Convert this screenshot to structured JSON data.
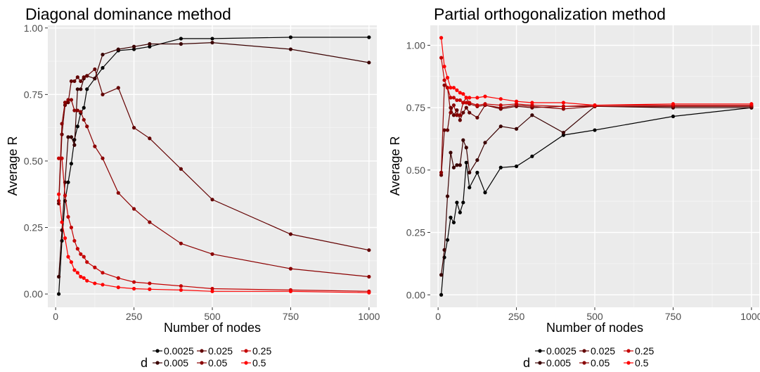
{
  "chart_data": [
    {
      "type": "line",
      "title": "Diagonal dominance method",
      "xlabel": "Number of nodes",
      "ylabel": "Average R",
      "xlim": [
        -25,
        1025
      ],
      "ylim": [
        -0.05,
        1.01
      ],
      "xticks": [
        0,
        250,
        500,
        750,
        1000
      ],
      "xtick_labels": [
        "0",
        "250",
        "500",
        "750",
        "1000"
      ],
      "yticks": [
        0,
        0.25,
        0.5,
        0.75,
        1.0
      ],
      "ytick_labels": [
        "0.00",
        "0.25",
        "0.50",
        "0.75",
        "1.00"
      ],
      "grid": true,
      "legend_title": "d",
      "legend_position": "bottom",
      "series": [
        {
          "name": "0.0025",
          "color": "#000000",
          "x": [
            10,
            20,
            30,
            40,
            50,
            60,
            70,
            80,
            90,
            100,
            125,
            150,
            200,
            250,
            300,
            400,
            500,
            750,
            1000
          ],
          "y": [
            0.0,
            0.2,
            0.35,
            0.42,
            0.49,
            0.58,
            0.63,
            0.68,
            0.7,
            0.77,
            0.81,
            0.85,
            0.915,
            0.92,
            0.93,
            0.96,
            0.96,
            0.965,
            0.965
          ]
        },
        {
          "name": "0.005",
          "color": "#3a0000",
          "x": [
            10,
            20,
            30,
            40,
            50,
            60,
            70,
            80,
            90,
            100,
            125,
            150,
            200,
            250,
            300,
            400,
            500,
            750,
            1000
          ],
          "y": [
            0.065,
            0.24,
            0.42,
            0.59,
            0.59,
            0.56,
            0.77,
            0.77,
            0.81,
            0.82,
            0.81,
            0.9,
            0.92,
            0.93,
            0.94,
            0.94,
            0.945,
            0.92,
            0.87
          ]
        },
        {
          "name": "0.025",
          "color": "#620000",
          "x": [
            10,
            20,
            30,
            40,
            50,
            60,
            70,
            80,
            90,
            100,
            125,
            150,
            200,
            250,
            300,
            400,
            500,
            750,
            1000
          ],
          "y": [
            0.34,
            0.6,
            0.71,
            0.72,
            0.8,
            0.8,
            0.815,
            0.8,
            0.815,
            0.82,
            0.845,
            0.75,
            0.775,
            0.625,
            0.585,
            0.47,
            0.355,
            0.225,
            0.165
          ]
        },
        {
          "name": "0.05",
          "color": "#8a0000",
          "x": [
            10,
            20,
            30,
            40,
            50,
            60,
            70,
            80,
            90,
            100,
            125,
            150,
            200,
            250,
            300,
            400,
            500,
            750,
            1000
          ],
          "y": [
            0.35,
            0.64,
            0.72,
            0.73,
            0.73,
            0.69,
            0.69,
            0.685,
            0.655,
            0.63,
            0.555,
            0.51,
            0.38,
            0.32,
            0.27,
            0.19,
            0.15,
            0.095,
            0.065
          ]
        },
        {
          "name": "0.25",
          "color": "#c40000",
          "x": [
            10,
            20,
            30,
            40,
            50,
            60,
            70,
            80,
            90,
            100,
            125,
            150,
            200,
            250,
            300,
            400,
            500,
            750,
            1000
          ],
          "y": [
            0.51,
            0.51,
            0.37,
            0.29,
            0.25,
            0.2,
            0.17,
            0.15,
            0.14,
            0.12,
            0.1,
            0.08,
            0.06,
            0.045,
            0.04,
            0.03,
            0.02,
            0.015,
            0.01
          ]
        },
        {
          "name": "0.5",
          "color": "#ff0000",
          "x": [
            10,
            20,
            30,
            40,
            50,
            60,
            70,
            80,
            90,
            100,
            125,
            150,
            200,
            250,
            300,
            400,
            500,
            750,
            1000
          ],
          "y": [
            0.375,
            0.27,
            0.21,
            0.14,
            0.12,
            0.09,
            0.08,
            0.065,
            0.06,
            0.05,
            0.04,
            0.035,
            0.025,
            0.02,
            0.018,
            0.015,
            0.01,
            0.01,
            0.005
          ]
        }
      ]
    },
    {
      "type": "line",
      "title": "Partial orthogonalization method",
      "xlabel": "Number of nodes",
      "ylabel": "Average R",
      "xlim": [
        -25,
        1025
      ],
      "ylim": [
        -0.05,
        1.08
      ],
      "xticks": [
        0,
        250,
        500,
        750,
        1000
      ],
      "xtick_labels": [
        "0",
        "250",
        "500",
        "750",
        "1000"
      ],
      "yticks": [
        0,
        0.25,
        0.5,
        0.75,
        1.0
      ],
      "ytick_labels": [
        "0.00",
        "0.25",
        "0.50",
        "0.75",
        "1.00"
      ],
      "grid": true,
      "legend_title": "d",
      "legend_position": "bottom",
      "series": [
        {
          "name": "0.0025",
          "color": "#000000",
          "x": [
            10,
            20,
            30,
            40,
            50,
            60,
            70,
            80,
            90,
            100,
            125,
            150,
            200,
            250,
            300,
            400,
            500,
            750,
            1000
          ],
          "y": [
            0.0,
            0.15,
            0.22,
            0.31,
            0.29,
            0.37,
            0.33,
            0.37,
            0.53,
            0.43,
            0.49,
            0.41,
            0.51,
            0.515,
            0.555,
            0.64,
            0.66,
            0.715,
            0.75
          ]
        },
        {
          "name": "0.005",
          "color": "#3a0000",
          "x": [
            10,
            20,
            30,
            40,
            50,
            60,
            70,
            80,
            90,
            100,
            125,
            150,
            200,
            250,
            300,
            400,
            500,
            750,
            1000
          ],
          "y": [
            0.08,
            0.18,
            0.395,
            0.57,
            0.51,
            0.52,
            0.52,
            0.62,
            0.59,
            0.49,
            0.54,
            0.61,
            0.675,
            0.665,
            0.72,
            0.65,
            0.755,
            0.75,
            0.75
          ]
        },
        {
          "name": "0.025",
          "color": "#620000",
          "x": [
            10,
            20,
            30,
            40,
            50,
            60,
            70,
            80,
            90,
            100,
            125,
            150,
            200,
            250,
            300,
            400,
            500,
            750,
            1000
          ],
          "y": [
            0.48,
            0.66,
            0.66,
            0.75,
            0.72,
            0.74,
            0.7,
            0.73,
            0.75,
            0.73,
            0.71,
            0.76,
            0.745,
            0.755,
            0.75,
            0.755,
            0.755,
            0.755,
            0.755
          ]
        },
        {
          "name": "0.05",
          "color": "#8a0000",
          "x": [
            10,
            20,
            30,
            40,
            50,
            60,
            70,
            80,
            90,
            100,
            125,
            150,
            200,
            250,
            300,
            400,
            500,
            750,
            1000
          ],
          "y": [
            0.49,
            0.84,
            0.83,
            0.73,
            0.76,
            0.72,
            0.72,
            0.77,
            0.79,
            0.765,
            0.755,
            0.76,
            0.75,
            0.76,
            0.755,
            0.745,
            0.755,
            0.755,
            0.755
          ]
        },
        {
          "name": "0.25",
          "color": "#c40000",
          "x": [
            10,
            20,
            30,
            40,
            50,
            60,
            70,
            80,
            90,
            100,
            125,
            150,
            200,
            250,
            300,
            400,
            500,
            750,
            1000
          ],
          "y": [
            0.95,
            0.86,
            0.83,
            0.79,
            0.79,
            0.78,
            0.78,
            0.77,
            0.77,
            0.77,
            0.76,
            0.765,
            0.76,
            0.765,
            0.76,
            0.755,
            0.76,
            0.76,
            0.76
          ]
        },
        {
          "name": "0.5",
          "color": "#ff0000",
          "x": [
            10,
            20,
            30,
            40,
            50,
            60,
            70,
            80,
            90,
            100,
            125,
            150,
            200,
            250,
            300,
            400,
            500,
            750,
            1000
          ],
          "y": [
            1.03,
            0.915,
            0.87,
            0.83,
            0.83,
            0.82,
            0.81,
            0.805,
            0.79,
            0.79,
            0.79,
            0.795,
            0.785,
            0.775,
            0.77,
            0.77,
            0.76,
            0.765,
            0.765
          ]
        }
      ]
    }
  ]
}
